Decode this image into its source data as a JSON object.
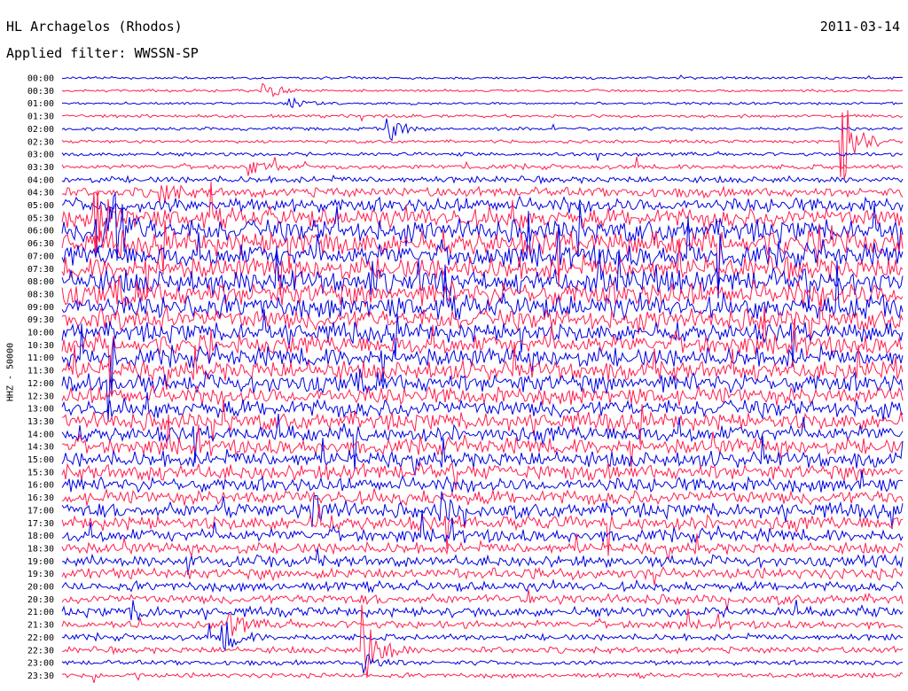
{
  "header": {
    "title": "HL Archagelos (Rhodos)",
    "date": "2011-03-14",
    "filter": "Applied filter: WWSSN-SP"
  },
  "chart_data": {
    "type": "line",
    "title": "HL Archagelos (Rhodos)",
    "ylabel": "HHZ - 50000",
    "xlabel": "",
    "row_labels": [
      "00:00",
      "00:30",
      "01:00",
      "01:30",
      "02:00",
      "02:30",
      "03:00",
      "03:30",
      "04:00",
      "04:30",
      "05:00",
      "05:30",
      "06:00",
      "06:30",
      "07:00",
      "07:30",
      "08:00",
      "08:30",
      "09:00",
      "09:30",
      "10:00",
      "10:30",
      "11:00",
      "11:30",
      "12:00",
      "12:30",
      "13:00",
      "13:30",
      "14:00",
      "14:30",
      "15:00",
      "15:30",
      "16:00",
      "16:30",
      "17:00",
      "17:30",
      "18:00",
      "18:30",
      "19:00",
      "19:30",
      "20:00",
      "20:30",
      "21:00",
      "21:30",
      "22:00",
      "22:30",
      "23:00",
      "23:30"
    ],
    "row_colors": [
      "#0000e0",
      "#ff1f4f"
    ],
    "noise_level": [
      0.08,
      0.08,
      0.08,
      0.1,
      0.1,
      0.1,
      0.12,
      0.15,
      0.2,
      0.3,
      0.45,
      0.6,
      0.7,
      0.75,
      0.7,
      0.7,
      0.75,
      0.75,
      0.7,
      0.65,
      0.6,
      0.6,
      0.6,
      0.6,
      0.6,
      0.55,
      0.55,
      0.55,
      0.5,
      0.5,
      0.5,
      0.5,
      0.45,
      0.45,
      0.45,
      0.45,
      0.4,
      0.35,
      0.35,
      0.35,
      0.3,
      0.3,
      0.3,
      0.25,
      0.2,
      0.2,
      0.15,
      0.15
    ],
    "events": [
      {
        "row": 1,
        "x": 0.24,
        "amp": 0.8
      },
      {
        "row": 2,
        "x": 0.27,
        "amp": 0.5
      },
      {
        "row": 4,
        "x": 0.39,
        "amp": 1.0
      },
      {
        "row": 5,
        "x": 0.93,
        "amp": 3.5
      },
      {
        "row": 7,
        "x": 0.22,
        "amp": 0.7
      },
      {
        "row": 9,
        "x": 0.12,
        "amp": 0.8
      },
      {
        "row": 11,
        "x": 0.04,
        "amp": 2.5
      },
      {
        "row": 12,
        "x": 0.04,
        "amp": 3.0
      },
      {
        "row": 12,
        "x": 0.06,
        "amp": 2.5
      },
      {
        "row": 34,
        "x": 0.3,
        "amp": 1.5
      },
      {
        "row": 34,
        "x": 0.45,
        "amp": 1.2
      },
      {
        "row": 42,
        "x": 0.08,
        "amp": 0.8
      },
      {
        "row": 43,
        "x": 0.2,
        "amp": 1.0
      },
      {
        "row": 44,
        "x": 0.19,
        "amp": 1.5
      },
      {
        "row": 45,
        "x": 0.36,
        "amp": 3.5
      },
      {
        "row": 46,
        "x": 0.36,
        "amp": 1.0
      }
    ]
  }
}
